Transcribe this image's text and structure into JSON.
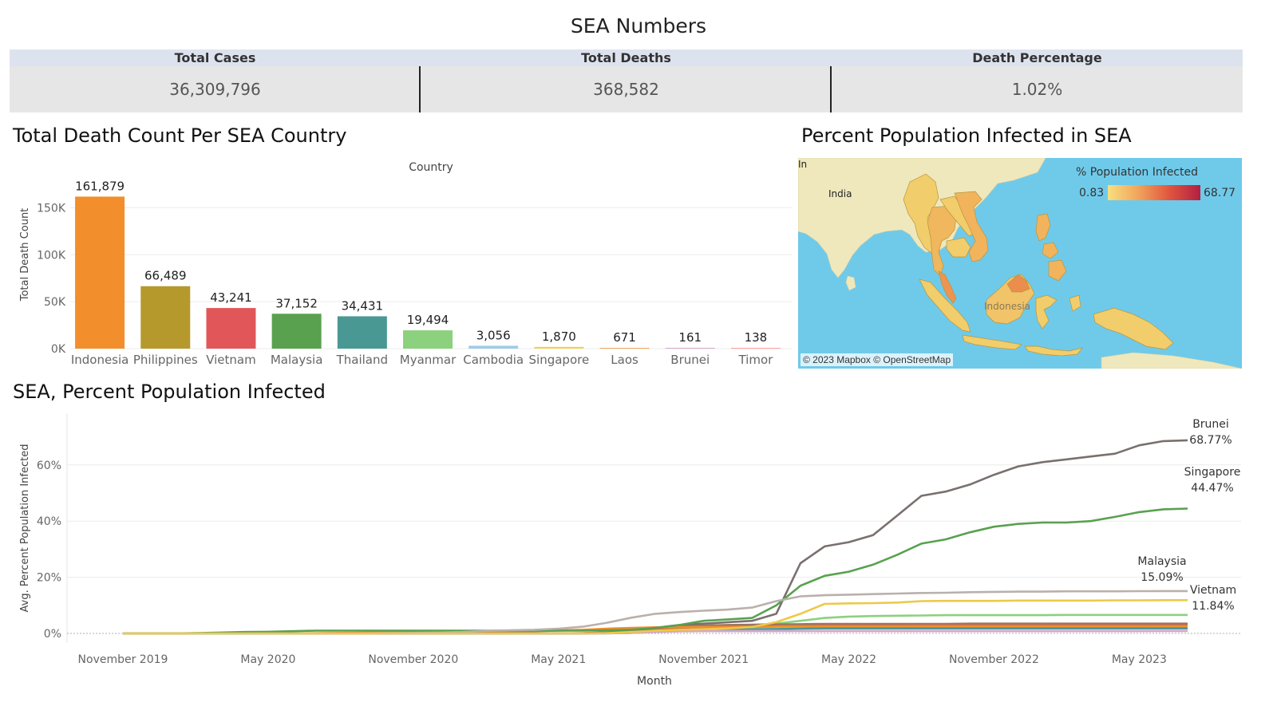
{
  "dashboard": {
    "title": "SEA Numbers"
  },
  "kpis": [
    {
      "label": "Total Cases",
      "value": "36,309,796"
    },
    {
      "label": "Total Deaths",
      "value": "368,582"
    },
    {
      "label": "Death Percentage",
      "value": "1.02%"
    }
  ],
  "bar_section": {
    "title": "Total Death Count Per SEA Country"
  },
  "map_section": {
    "title": "Percent Population Infected in SEA",
    "legend_title": "% Population Infected",
    "legend_min": "0.83",
    "legend_max": "68.77",
    "labels": [
      "India",
      "Indonesia",
      "In"
    ],
    "attribution": "© 2023 Mapbox © OpenStreetMap"
  },
  "line_section": {
    "title": "SEA, Percent Population Infected"
  },
  "chart_data": [
    {
      "type": "bar",
      "header": "Country",
      "ylabel": "Total Death Count",
      "categories": [
        "Indonesia",
        "Philippines",
        "Vietnam",
        "Malaysia",
        "Thailand",
        "Myanmar",
        "Cambodia",
        "Singapore",
        "Laos",
        "Brunei",
        "Timor"
      ],
      "values": [
        161879,
        66489,
        43241,
        37152,
        34431,
        19494,
        3056,
        1870,
        671,
        161,
        138
      ],
      "value_labels": [
        "161,879",
        "66,489",
        "43,241",
        "37,152",
        "34,431",
        "19,494",
        "3,056",
        "1,870",
        "671",
        "161",
        "138"
      ],
      "colors": [
        "#f28e2b",
        "#b6992d",
        "#e15759",
        "#59a14f",
        "#499894",
        "#8cd17d",
        "#a0cbe8",
        "#f1ce63",
        "#f1a35c",
        "#d4a6c8",
        "#ff9d9a"
      ],
      "yticks": [
        0,
        50000,
        100000,
        150000
      ],
      "ytick_labels": [
        "0K",
        "50K",
        "100K",
        "150K"
      ],
      "ylim": [
        0,
        175000
      ]
    },
    {
      "type": "line",
      "xlabel": "Month",
      "ylabel": "Avg. Percent Population Infected",
      "x_dates": [
        "2019-11",
        "2019-12",
        "2020-01",
        "2020-02",
        "2020-03",
        "2020-04",
        "2020-05",
        "2020-06",
        "2020-07",
        "2020-08",
        "2020-09",
        "2020-10",
        "2020-11",
        "2020-12",
        "2021-01",
        "2021-02",
        "2021-03",
        "2021-04",
        "2021-05",
        "2021-06",
        "2021-07",
        "2021-08",
        "2021-09",
        "2021-10",
        "2021-11",
        "2021-12",
        "2022-01",
        "2022-02",
        "2022-03",
        "2022-04",
        "2022-05",
        "2022-06",
        "2022-07",
        "2022-08",
        "2022-09",
        "2022-10",
        "2022-11",
        "2022-12",
        "2023-01",
        "2023-02",
        "2023-03",
        "2023-04",
        "2023-05",
        "2023-06",
        "2023-07"
      ],
      "xticks": [
        "November 2019",
        "May 2020",
        "November 2020",
        "May 2021",
        "November 2021",
        "May 2022",
        "November 2022",
        "May 2023"
      ],
      "yticks": [
        0,
        20,
        40,
        60
      ],
      "ytick_labels": [
        "0%",
        "20%",
        "40%",
        "60%"
      ],
      "ylim": [
        0,
        75
      ],
      "series": [
        {
          "name": "Brunei",
          "end_label": "68.77%",
          "color": "#79706e",
          "values": [
            0,
            0,
            0,
            0,
            0,
            0,
            0.05,
            0.05,
            0.05,
            0.05,
            0.05,
            0.05,
            0.05,
            0.05,
            0.05,
            0.05,
            0.05,
            0.05,
            0.05,
            0.05,
            0.2,
            0.5,
            2,
            3,
            3.5,
            4,
            4.5,
            7,
            25,
            31,
            32.5,
            35,
            42,
            49,
            50.5,
            53,
            56.5,
            59.5,
            61,
            62,
            63,
            64,
            67,
            68.5,
            68.77
          ]
        },
        {
          "name": "Singapore",
          "end_label": "44.47%",
          "color": "#59a14f",
          "values": [
            0,
            0,
            0,
            0.1,
            0.3,
            0.5,
            0.6,
            0.8,
            1,
            1,
            1,
            1,
            1,
            1,
            1,
            1,
            1,
            1,
            1,
            1,
            1.1,
            1.3,
            2,
            3,
            4.5,
            5,
            5.5,
            10,
            17,
            20.5,
            22,
            24.5,
            28,
            32,
            33.5,
            36,
            38,
            39,
            39.5,
            39.5,
            40,
            41.5,
            43.2,
            44.2,
            44.47
          ]
        },
        {
          "name": "Malaysia",
          "end_label": "15.09%",
          "color": "#bab0ac",
          "values": [
            0,
            0,
            0,
            0,
            0,
            0,
            0.03,
            0.03,
            0.03,
            0.03,
            0.03,
            0.1,
            0.2,
            0.3,
            0.5,
            0.9,
            1.1,
            1.3,
            1.7,
            2.4,
            3.8,
            5.6,
            7,
            7.6,
            8.1,
            8.5,
            9.2,
            11.5,
            13.2,
            13.6,
            13.8,
            14,
            14.2,
            14.4,
            14.5,
            14.7,
            14.8,
            14.9,
            14.9,
            15,
            15,
            15,
            15.05,
            15.08,
            15.09
          ]
        },
        {
          "name": "Vietnam",
          "end_label": "11.84%",
          "color": "#edc948",
          "values": [
            0,
            0,
            0,
            0,
            0,
            0,
            0,
            0,
            0,
            0,
            0,
            0,
            0,
            0,
            0,
            0,
            0,
            0,
            0,
            0.03,
            0.1,
            0.5,
            1,
            1.3,
            1.5,
            1.8,
            2.3,
            4,
            7,
            10.5,
            10.7,
            10.8,
            11,
            11.5,
            11.6,
            11.6,
            11.6,
            11.7,
            11.7,
            11.7,
            11.7,
            11.8,
            11.8,
            11.84,
            11.84
          ]
        },
        {
          "color": "#8cd17d",
          "values": [
            0,
            0,
            0,
            0,
            0,
            0,
            0,
            0,
            0,
            0,
            0,
            0,
            0,
            0,
            0,
            0,
            0,
            0,
            0,
            0.05,
            0.2,
            0.6,
            1,
            1.5,
            2,
            2.5,
            3,
            3.5,
            4.5,
            5.5,
            6,
            6.2,
            6.3,
            6.4,
            6.5,
            6.5,
            6.5,
            6.5,
            6.5,
            6.6,
            6.6,
            6.6,
            6.6,
            6.6,
            6.6
          ]
        },
        {
          "color": "#9c755f",
          "values": [
            0,
            0,
            0,
            0,
            0,
            0,
            0,
            0,
            0,
            0,
            0,
            0,
            0,
            0,
            0,
            0,
            0,
            0,
            0,
            0.1,
            0.4,
            1,
            2,
            2.5,
            2.8,
            3,
            3.1,
            3.2,
            3.3,
            3.4,
            3.4,
            3.4,
            3.4,
            3.4,
            3.4,
            3.5,
            3.5,
            3.5,
            3.5,
            3.5,
            3.5,
            3.5,
            3.5,
            3.5,
            3.5
          ]
        },
        {
          "color": "#e15759",
          "values": [
            0,
            0,
            0,
            0,
            0,
            0,
            0,
            0,
            0,
            0,
            0,
            0,
            0,
            0,
            0,
            0,
            0,
            0,
            0,
            0.05,
            0.2,
            0.7,
            1.5,
            2,
            2.2,
            2.4,
            2.5,
            2.6,
            2.7,
            2.8,
            2.8,
            2.8,
            2.8,
            2.9,
            2.9,
            2.9,
            2.9,
            2.9,
            2.9,
            2.9,
            2.9,
            2.9,
            2.9,
            2.9,
            2.9
          ]
        },
        {
          "color": "#b6992d",
          "values": [
            0,
            0,
            0,
            0,
            0,
            0,
            0,
            0,
            0.05,
            0.1,
            0.2,
            0.3,
            0.35,
            0.4,
            0.45,
            0.5,
            0.6,
            0.8,
            1,
            1.2,
            1.3,
            1.6,
            2,
            2.2,
            2.3,
            2.3,
            2.4,
            2.5,
            2.6,
            2.6,
            2.6,
            2.6,
            2.6,
            2.7,
            2.7,
            2.7,
            2.7,
            2.7,
            2.7,
            2.7,
            2.7,
            2.7,
            2.7,
            2.7,
            2.7
          ]
        },
        {
          "color": "#f28e2b",
          "values": [
            0,
            0,
            0,
            0,
            0,
            0,
            0,
            0.05,
            0.1,
            0.2,
            0.3,
            0.4,
            0.5,
            0.6,
            0.7,
            0.8,
            0.9,
            1,
            1.1,
            1.3,
            1.7,
            2,
            2.2,
            2.3,
            2.3,
            2.3,
            2.3,
            2.4,
            2.4,
            2.4,
            2.4,
            2.4,
            2.4,
            2.4,
            2.4,
            2.4,
            2.4,
            2.4,
            2.4,
            2.4,
            2.4,
            2.4,
            2.4,
            2.4,
            2.4
          ]
        },
        {
          "color": "#499894",
          "values": [
            0,
            0,
            0,
            0,
            0,
            0,
            0,
            0,
            0,
            0,
            0,
            0,
            0,
            0,
            0,
            0,
            0,
            0,
            0,
            0,
            0.05,
            0.2,
            0.8,
            1.2,
            1.4,
            1.5,
            1.5,
            1.6,
            1.7,
            1.8,
            1.8,
            1.8,
            1.8,
            1.8,
            1.8,
            1.8,
            1.8,
            1.8,
            1.8,
            1.8,
            1.8,
            1.8,
            1.8,
            1.8,
            1.8
          ]
        },
        {
          "color": "#a0cbe8",
          "values": [
            0,
            0,
            0,
            0,
            0,
            0,
            0,
            0,
            0,
            0,
            0,
            0,
            0,
            0,
            0,
            0,
            0,
            0,
            0,
            0,
            0.05,
            0.2,
            0.5,
            0.8,
            0.9,
            0.9,
            0.9,
            0.9,
            0.9,
            0.9,
            0.9,
            0.9,
            0.9,
            0.9,
            0.9,
            0.9,
            0.9,
            0.9,
            0.9,
            0.9,
            0.9,
            0.9,
            0.9,
            0.9,
            0.9
          ]
        },
        {
          "color": "#d4a6c8",
          "values": [
            0,
            0,
            0,
            0,
            0,
            0,
            0,
            0,
            0,
            0,
            0,
            0,
            0,
            0,
            0,
            0,
            0,
            0,
            0,
            0,
            0.05,
            0.2,
            0.5,
            0.7,
            0.8,
            0.8,
            0.8,
            0.8,
            0.8,
            0.8,
            0.8,
            0.8,
            0.8,
            0.8,
            0.8,
            0.8,
            0.8,
            0.8,
            0.8,
            0.8,
            0.8,
            0.8,
            0.8,
            0.83,
            0.83
          ]
        }
      ]
    }
  ]
}
